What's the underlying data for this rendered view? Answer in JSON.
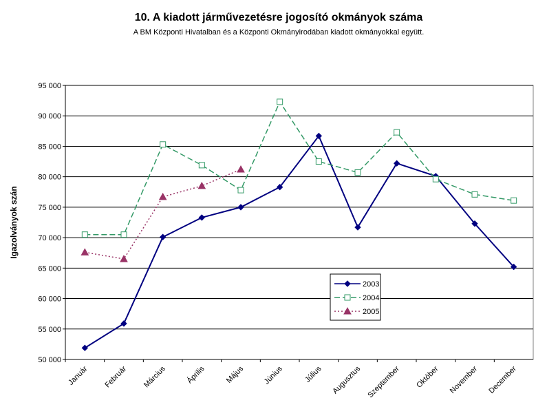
{
  "chart_data": {
    "type": "line",
    "title": "10. A  kiadott járművezetésre  jogosító okmányok száma",
    "subtitle": "A BM Központi Hivatalban és a Központi Okmányirodában kiadott okmányokkal együtt.",
    "ylabel": "Igazolványok szán",
    "categories": [
      "Január",
      "Február",
      "Március",
      "Április",
      "Május",
      "Június",
      "Július",
      "Augusztus",
      "Szeptember",
      "Október",
      "November",
      "December"
    ],
    "series": [
      {
        "name": "2003",
        "color": "#000080",
        "marker": "diamond",
        "dash": "solid",
        "values": [
          51900,
          55900,
          70100,
          73300,
          75000,
          78300,
          86700,
          71700,
          82200,
          80100,
          72300,
          65200
        ]
      },
      {
        "name": "2004",
        "color": "#339966",
        "marker": "square",
        "dash": "dashed",
        "values": [
          70500,
          70500,
          85300,
          81900,
          77800,
          92300,
          82500,
          80700,
          87300,
          79600,
          77100,
          76100
        ]
      },
      {
        "name": "2005",
        "color": "#993366",
        "marker": "triangle",
        "dash": "dotted",
        "values": [
          67600,
          66500,
          76700,
          78500,
          81200,
          null,
          null,
          null,
          null,
          null,
          null,
          null
        ]
      }
    ],
    "ylim": [
      50000,
      95000
    ],
    "yticks": [
      {
        "value": 50000,
        "label": "50 000"
      },
      {
        "value": 55000,
        "label": "55 000"
      },
      {
        "value": 60000,
        "label": "60 000"
      },
      {
        "value": 65000,
        "label": "65 000"
      },
      {
        "value": 70000,
        "label": "70 000"
      },
      {
        "value": 75000,
        "label": "75 000"
      },
      {
        "value": 80000,
        "label": "80 000"
      },
      {
        "value": 85000,
        "label": "85 000"
      },
      {
        "value": 90000,
        "label": "90 000"
      },
      {
        "value": 95000,
        "label": "95 000"
      }
    ],
    "grid": true
  }
}
